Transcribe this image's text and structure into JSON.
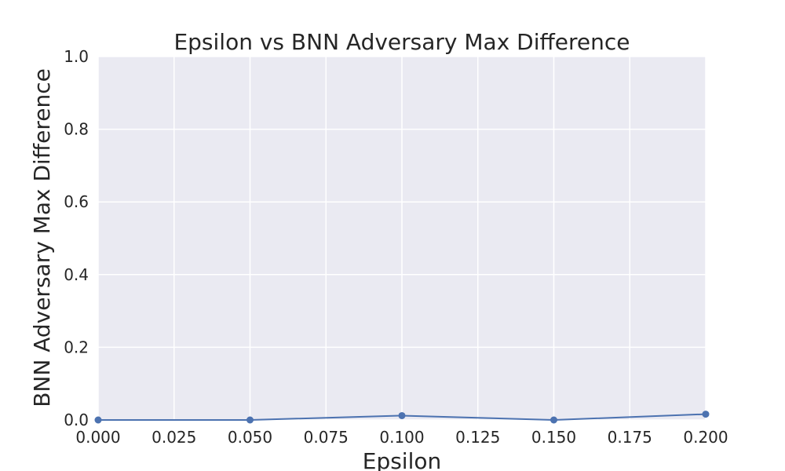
{
  "chart_data": {
    "type": "line",
    "title": "Epsilon vs BNN Adversary Max Difference",
    "xlabel": "Epsilon",
    "ylabel": "BNN Adversary Max Difference",
    "xlim": [
      0.0,
      0.2
    ],
    "ylim": [
      0.0,
      1.0
    ],
    "x_ticks": [
      "0.000",
      "0.025",
      "0.050",
      "0.075",
      "0.100",
      "0.125",
      "0.150",
      "0.175",
      "0.200"
    ],
    "y_ticks": [
      "0.0",
      "0.2",
      "0.4",
      "0.6",
      "0.8",
      "1.0"
    ],
    "grid": true,
    "series": [
      {
        "x": [
          0.0,
          0.05,
          0.1,
          0.15,
          0.2
        ],
        "y": [
          0.0,
          0.0,
          0.012,
          0.0,
          0.016
        ],
        "color": "#4c72b0",
        "marker": "circle"
      }
    ],
    "background": "#eaeaf2"
  }
}
